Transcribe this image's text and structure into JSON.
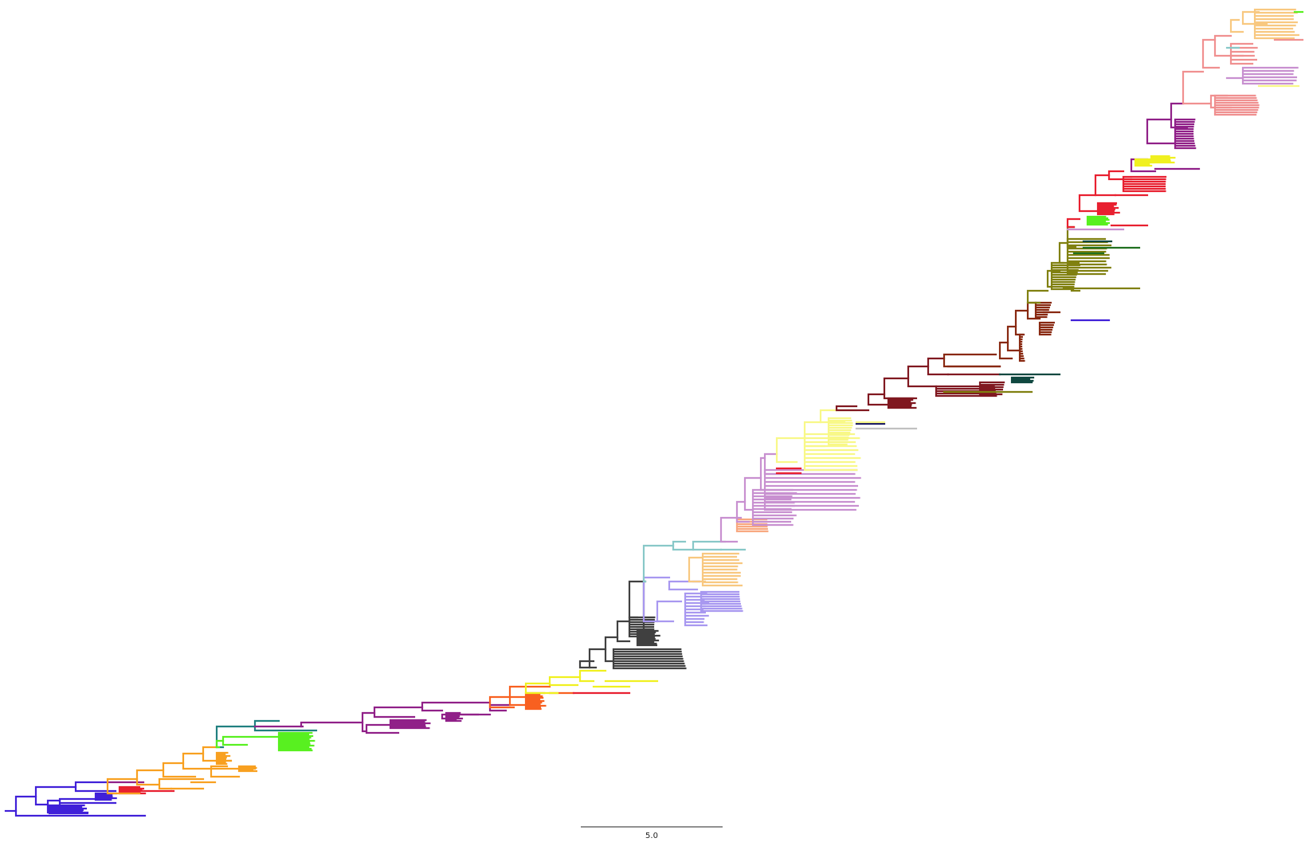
{
  "scale_bar": {
    "label": "5.0"
  },
  "palette": {
    "blue_violet": "#4020d8",
    "red": "#e82030",
    "orange": "#f8a020",
    "teal": "#208080",
    "green": "#58f020",
    "purple": "#902088",
    "orange_red": "#f86020",
    "yellow": "#f0f020",
    "dark_gray": "#404040",
    "lavender": "#a898f0",
    "light_teal": "#88c8c8",
    "light_orange": "#f8c880",
    "salmon": "#f8a880",
    "orchid": "#c890d0",
    "pale_yellow": "#f8f888",
    "silver": "#c0c0c0",
    "navy": "#101060",
    "maroon": "#801820",
    "brown": "#882810",
    "dark_green": "#104840",
    "olive": "#808010",
    "forest": "#207020",
    "pink": "#f09090"
  }
}
